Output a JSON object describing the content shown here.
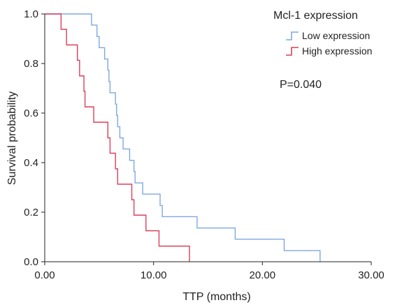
{
  "chart_data": {
    "type": "line",
    "subtype": "kaplan-meier step",
    "xlabel": "TTP (months)",
    "ylabel": "Survival probability",
    "xlim": [
      0,
      30
    ],
    "ylim": [
      0,
      1.0
    ],
    "xticks": [
      0,
      10,
      20,
      30
    ],
    "xtick_labels": [
      "0.00",
      "10.00",
      "20.00",
      "30.00"
    ],
    "yticks": [
      0,
      0.2,
      0.4,
      0.6,
      0.8,
      1.0
    ],
    "ytick_labels": [
      "0.0",
      "0.2",
      "0.4",
      "0.6",
      "0.8",
      "1.0"
    ],
    "grid": false,
    "legend": {
      "title": "Mcl-1 expression",
      "position": "top-right"
    },
    "annotation": "P=0.040",
    "series": [
      {
        "name": "Low expression",
        "color": "#7fa8e0",
        "steps": [
          [
            0,
            1.0
          ],
          [
            4.3,
            0.955
          ],
          [
            4.8,
            0.909
          ],
          [
            5.0,
            0.864
          ],
          [
            5.5,
            0.818
          ],
          [
            5.8,
            0.773
          ],
          [
            5.9,
            0.727
          ],
          [
            6.0,
            0.682
          ],
          [
            6.5,
            0.636
          ],
          [
            6.6,
            0.591
          ],
          [
            6.7,
            0.545
          ],
          [
            6.9,
            0.5
          ],
          [
            7.2,
            0.455
          ],
          [
            7.8,
            0.409
          ],
          [
            8.2,
            0.364
          ],
          [
            8.3,
            0.318
          ],
          [
            9.0,
            0.273
          ],
          [
            10.6,
            0.227
          ],
          [
            10.8,
            0.182
          ],
          [
            14.0,
            0.136
          ],
          [
            17.5,
            0.091
          ],
          [
            22.0,
            0.045
          ],
          [
            25.3,
            0.0
          ]
        ]
      },
      {
        "name": "High expression",
        "color": "#d9415b",
        "steps": [
          [
            0,
            1.0
          ],
          [
            1.5,
            0.938
          ],
          [
            2.0,
            0.875
          ],
          [
            3.0,
            0.813
          ],
          [
            3.2,
            0.75
          ],
          [
            3.6,
            0.688
          ],
          [
            3.7,
            0.625
          ],
          [
            4.5,
            0.563
          ],
          [
            5.8,
            0.5
          ],
          [
            6.0,
            0.438
          ],
          [
            6.5,
            0.375
          ],
          [
            6.7,
            0.313
          ],
          [
            8.0,
            0.25
          ],
          [
            8.2,
            0.188
          ],
          [
            9.3,
            0.125
          ],
          [
            10.5,
            0.063
          ],
          [
            13.3,
            0.0
          ]
        ]
      }
    ]
  }
}
